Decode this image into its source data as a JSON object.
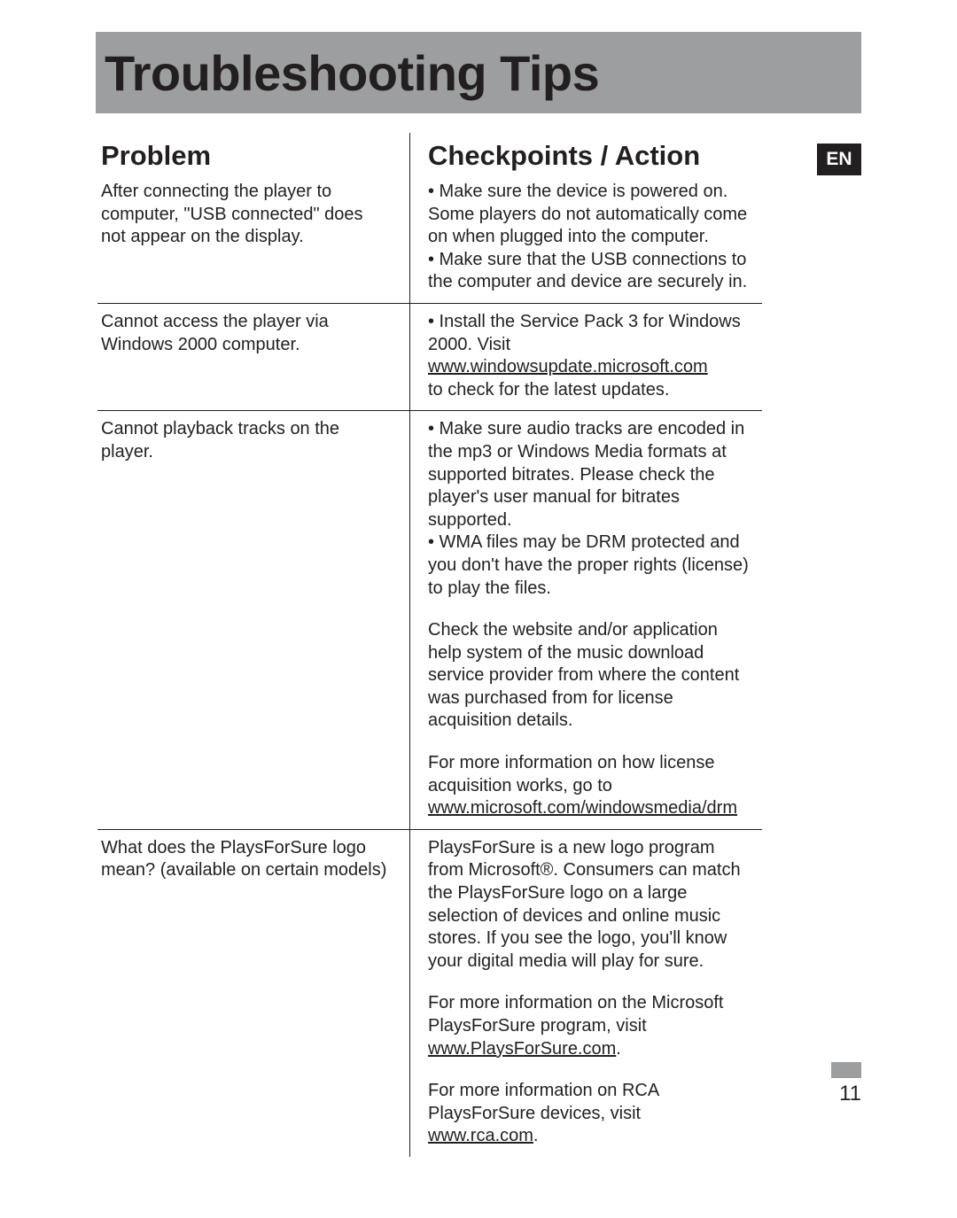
{
  "header": {
    "title": "Troubleshooting Tips"
  },
  "lang_badge": "EN",
  "page_number": "11",
  "columns": {
    "left": "Problem",
    "right": "Checkpoints / Action"
  },
  "rows": [
    {
      "problem": "After connecting the player to computer, \"USB connected\" does not appear on the display.",
      "action_html": "• Make sure the device is powered on. Some players do not automatically come on when plugged into the computer.<br>• Make sure that the USB connections to the computer and device are securely in."
    },
    {
      "problem": "Cannot access the player via Windows 2000 computer.",
      "action_html": "• Install the Service Pack 3 for Windows 2000. Visit<br><span class=\"underline\">www.windowsupdate.microsoft.com</span><br>to check for the latest updates."
    },
    {
      "problem": "Cannot playback tracks on the player.",
      "action_html": "• Make sure audio tracks are encoded in the mp3 or Windows Media formats at supported bitrates. Please check the player's user manual for bitrates supported.<br>• WMA files may be DRM protected and you don't have the proper rights (license) to play the files.<p class=\"gap\">Check the website and/or application help system of the music download service provider from where the content was purchased from for license acquisition details.</p><p class=\"gap\">For more information on how license acquisition works, go to<br><span class=\"underline\">www.microsoft.com/windowsmedia/drm</span></p>"
    },
    {
      "problem": "What does the PlaysForSure logo mean? (available on certain models)",
      "action_html": "PlaysForSure is a new logo program from Microsoft®. Consumers can match the PlaysForSure logo on a large selection of devices and online music stores. If you see the logo, you'll know your digital media will play for sure.<p class=\"gap\">For more information on the Microsoft PlaysForSure program, visit <span class=\"underline\">www.PlaysForSure.com</span>.</p><p class=\"gap\">For more information on RCA PlaysForSure devices, visit <span class=\"underline\">www.rca.com</span>.</p>"
    }
  ],
  "colors": {
    "header_bg": "#9c9e9f",
    "text": "#231f20",
    "badge_bg": "#231f20",
    "badge_text": "#ffffff",
    "page_bg": "#ffffff"
  }
}
